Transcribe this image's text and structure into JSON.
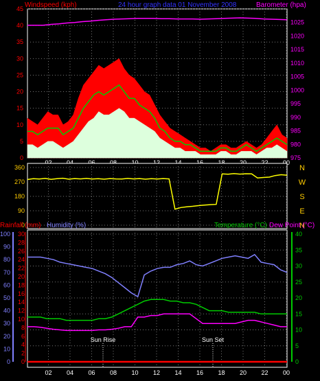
{
  "chart_data": [
    {
      "type": "line",
      "title": "24 hour graph data  01 November 2008",
      "left_axis_label": "Windspeed (kph)",
      "right_axis_label": "Barometer (hpa)",
      "x_ticks": [
        "02",
        "04",
        "06",
        "08",
        "10",
        "12",
        "14",
        "16",
        "18",
        "20",
        "22",
        "00"
      ],
      "left_ticks": [
        "0",
        "5",
        "10",
        "15",
        "20",
        "25",
        "30",
        "35",
        "40",
        "45"
      ],
      "right_ticks": [
        "975",
        "980",
        "985",
        "990",
        "995",
        "1000",
        "1005",
        "1010",
        "1015",
        "1020",
        "1025"
      ],
      "ylim_left": [
        0,
        45
      ],
      "ylim_right": [
        975,
        1030
      ],
      "grid": true,
      "colors": {
        "gust": "#ff0000",
        "average": "#00cc00",
        "minimum": "#ddffdd",
        "barometer": "#ff00ff",
        "left_label": "#ff0000",
        "title": "#3333ff",
        "right_label": "#ff00ff"
      },
      "series": [
        {
          "key": "gust",
          "values": [
            12,
            11,
            10,
            12,
            14,
            13,
            13,
            10,
            11,
            13,
            18,
            22,
            24,
            26,
            28,
            27,
            28,
            29,
            30,
            27,
            25,
            24,
            22,
            20,
            19,
            16,
            13,
            11,
            9,
            8,
            7,
            6,
            5,
            4,
            3,
            3,
            2,
            3,
            4,
            4,
            3,
            3,
            4,
            5,
            4,
            3,
            4,
            6,
            8,
            10,
            7,
            6
          ]
        },
        {
          "key": "average",
          "values": [
            8,
            8,
            7,
            8,
            9,
            9,
            9,
            7,
            8,
            9,
            12,
            15,
            17,
            19,
            20,
            19,
            20,
            21,
            22,
            20,
            18,
            18,
            16,
            15,
            14,
            12,
            9,
            8,
            6,
            5,
            5,
            4,
            4,
            3,
            2,
            2,
            2,
            2,
            3,
            3,
            2,
            2,
            3,
            4,
            3,
            2,
            3,
            4,
            5,
            6,
            5,
            4
          ]
        },
        {
          "key": "minimum",
          "values": [
            4,
            4,
            3,
            4,
            5,
            5,
            4,
            3,
            4,
            5,
            7,
            9,
            11,
            12,
            14,
            13,
            13,
            14,
            15,
            14,
            12,
            12,
            11,
            10,
            9,
            8,
            6,
            5,
            4,
            3,
            3,
            2,
            2,
            2,
            1,
            1,
            1,
            1,
            2,
            2,
            1,
            1,
            2,
            2,
            2,
            1,
            2,
            3,
            3,
            4,
            3,
            2
          ]
        },
        {
          "key": "barometer",
          "axis": "right",
          "values": [
            1024,
            1024,
            1024,
            1024.3,
            1024.5,
            1024.8,
            1025,
            1025.3,
            1025.5,
            1025.8,
            1026,
            1026.2,
            1026.3,
            1026.4,
            1026.5,
            1026.5,
            1026.5,
            1026.4,
            1026.4,
            1026.3,
            1026.3,
            1026.3,
            1026.2,
            1026.3,
            1026.4,
            1026.5,
            1026.6,
            1026.7,
            1026.6,
            1026.5,
            1026.3,
            1026.2,
            1026.1,
            1026
          ]
        }
      ]
    },
    {
      "type": "line",
      "right_labels": [
        "N",
        "W",
        "S",
        "E",
        "N"
      ],
      "left_ticks": [
        "0",
        "90",
        "180",
        "270",
        "360"
      ],
      "ylim": [
        0,
        360
      ],
      "x_ticks": [],
      "colors": {
        "direction": "#ffff00",
        "labels": "#ffcc00"
      },
      "series": [
        {
          "key": "direction",
          "values": [
            285,
            290,
            288,
            292,
            286,
            290,
            293,
            287,
            291,
            289,
            292,
            288,
            290,
            287,
            291,
            289,
            288,
            292,
            289,
            291,
            287,
            290,
            288,
            291,
            289,
            100,
            110,
            115,
            118,
            122,
            125,
            128,
            130,
            320,
            318,
            322,
            319,
            321,
            320,
            295,
            298,
            300,
            310,
            315,
            312
          ]
        }
      ]
    },
    {
      "type": "line",
      "left_label_a": "Rainfall (mm)",
      "left_label_b": "Humidity (%)",
      "right_label_a": "Temperature (°C)",
      "right_label_b": "Dew Point (°C)",
      "annotations": [
        "Sun Rise",
        "Sun Set"
      ],
      "x_ticks": [
        "02",
        "04",
        "06",
        "08",
        "10",
        "12",
        "14",
        "16",
        "18",
        "20",
        "22",
        "00"
      ],
      "rain_ticks": [
        "0",
        "2",
        "4",
        "6",
        "8",
        "10",
        "12",
        "14",
        "16",
        "18",
        "20",
        "22",
        "24",
        "26",
        "28",
        "30"
      ],
      "humidity_ticks": [
        "0",
        "10",
        "20",
        "30",
        "40",
        "50",
        "60",
        "70",
        "80",
        "90",
        "100"
      ],
      "temp_ticks": [
        "0",
        "5",
        "10",
        "15",
        "20",
        "25",
        "30",
        "35",
        "40"
      ],
      "ylim_temp": [
        0,
        40
      ],
      "ylim_humidity": [
        0,
        100
      ],
      "grid": true,
      "colors": {
        "humidity": "#8080ff",
        "temperature": "#00cc00",
        "dewpoint": "#ff00ff",
        "rainfall": "#ff0000",
        "rain_label": "#ff0000",
        "humidity_label": "#8080ff",
        "temp_label": "#00cc00",
        "dew_label": "#ff00ff"
      },
      "series": [
        {
          "key": "humidity",
          "values": [
            82,
            82,
            82,
            81,
            80,
            78,
            77,
            76,
            75,
            74,
            73,
            71,
            69,
            66,
            62,
            58,
            54,
            51,
            68,
            71,
            73,
            74,
            74,
            76,
            77,
            79,
            76,
            75,
            77,
            79,
            81,
            82,
            83,
            82,
            81,
            84,
            78,
            77,
            76,
            72,
            70
          ]
        },
        {
          "key": "temperature",
          "values": [
            14,
            14,
            14,
            13.5,
            13.5,
            13.5,
            13,
            13,
            13,
            13,
            13,
            13.5,
            13.5,
            14,
            15,
            16,
            17,
            18,
            19,
            19.5,
            19.5,
            19.5,
            19,
            19,
            18.5,
            18.5,
            18,
            17,
            16,
            16,
            16,
            15.5,
            15.5,
            15.5,
            15.5,
            15.5,
            15,
            15,
            15,
            15,
            15
          ]
        },
        {
          "key": "dewpoint",
          "values": [
            11,
            11,
            10.8,
            10.5,
            10.2,
            10,
            9.8,
            9.8,
            9.8,
            9.8,
            9.8,
            10,
            10,
            10.2,
            10.5,
            11,
            11,
            14,
            14,
            14.5,
            14.5,
            15,
            15,
            15,
            15,
            15,
            13.5,
            12,
            12,
            12,
            12,
            12,
            12,
            12.5,
            13,
            13,
            12.5,
            12,
            11.5,
            11,
            11
          ]
        },
        {
          "key": "rainfall",
          "values": [
            0,
            0,
            0,
            0,
            0,
            0,
            0,
            0,
            0,
            0,
            0,
            0,
            0,
            0,
            0,
            0,
            0,
            0,
            0,
            0,
            0,
            0,
            0,
            0,
            0,
            0,
            0,
            0,
            0,
            0,
            0,
            0,
            0,
            0,
            0,
            0,
            0,
            0,
            0,
            0,
            0
          ]
        }
      ]
    }
  ]
}
